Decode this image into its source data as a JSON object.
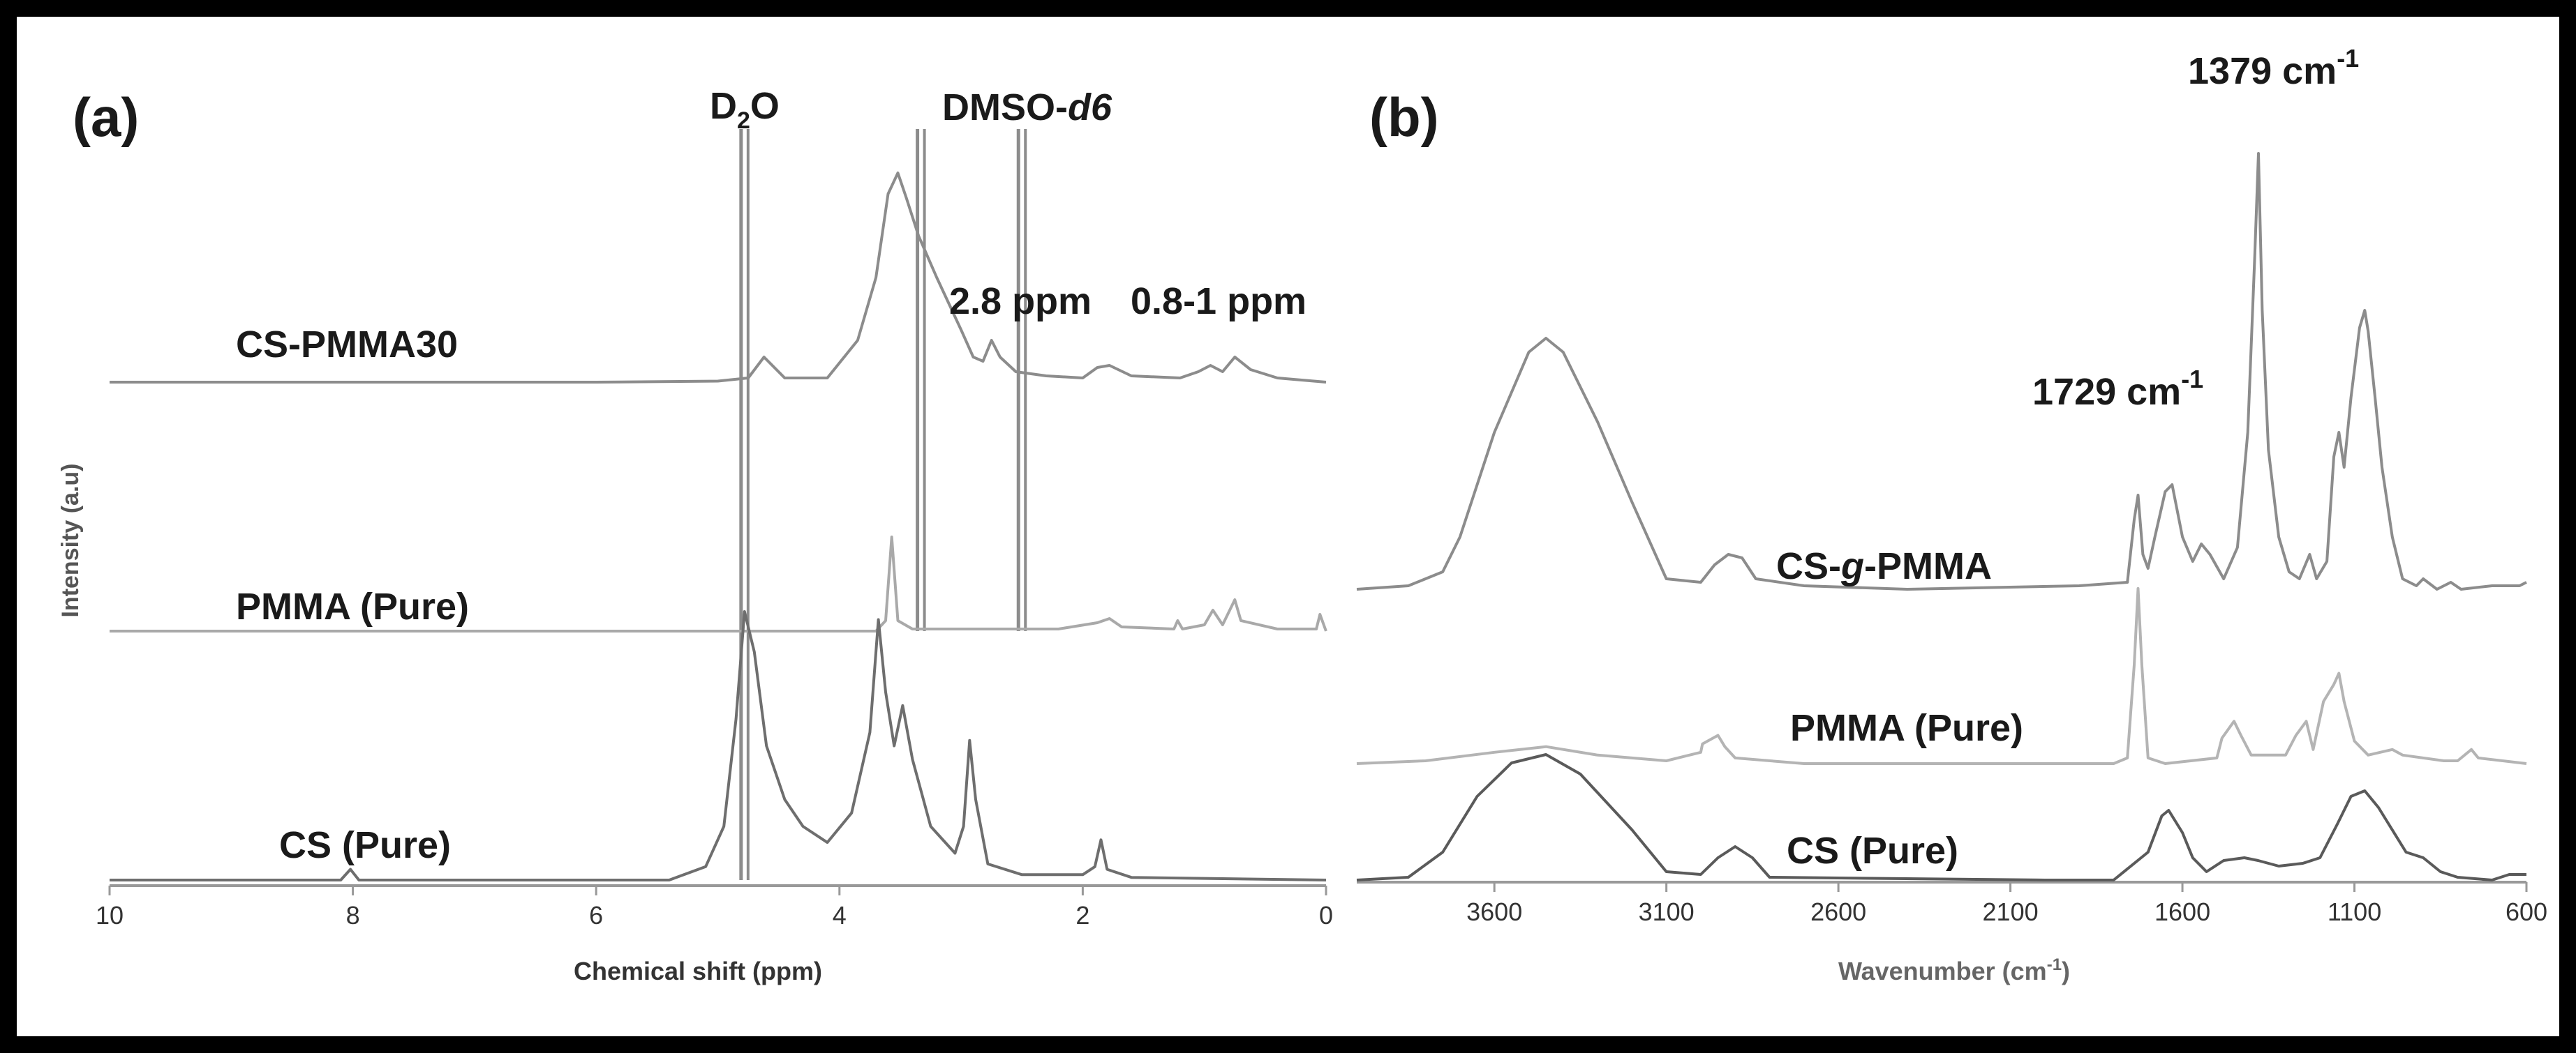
{
  "chart_data": [
    {
      "type": "line",
      "panel_label": "(a)",
      "xlabel": "Chemical shift (ppm)",
      "ylabel": "Intensity (a.u)",
      "xlim": [
        10,
        0
      ],
      "x_ticks": [
        "10",
        "8",
        "6",
        "4",
        "2",
        "0"
      ],
      "x_tick_values": [
        10,
        8,
        6,
        4,
        2,
        0
      ],
      "series": [
        {
          "name": "CS-PMMA30",
          "color": "#8c8c8c",
          "baseline": 0,
          "points": [
            [
              10,
              0
            ],
            [
              6,
              0
            ],
            [
              5,
              0.005
            ],
            [
              4.75,
              0.02
            ],
            [
              4.62,
              0.12
            ],
            [
              4.45,
              0.02
            ],
            [
              4.1,
              0.02
            ],
            [
              3.85,
              0.2
            ],
            [
              3.7,
              0.5
            ],
            [
              3.6,
              0.9
            ],
            [
              3.52,
              1.0
            ],
            [
              3.45,
              0.88
            ],
            [
              3.35,
              0.7
            ],
            [
              3.2,
              0.5
            ],
            [
              3.0,
              0.25
            ],
            [
              2.9,
              0.12
            ],
            [
              2.82,
              0.1
            ],
            [
              2.75,
              0.2
            ],
            [
              2.68,
              0.12
            ],
            [
              2.55,
              0.05
            ],
            [
              2.3,
              0.03
            ],
            [
              2.0,
              0.02
            ],
            [
              1.88,
              0.07
            ],
            [
              1.78,
              0.08
            ],
            [
              1.6,
              0.03
            ],
            [
              1.2,
              0.02
            ],
            [
              1.05,
              0.05
            ],
            [
              0.95,
              0.08
            ],
            [
              0.85,
              0.05
            ],
            [
              0.75,
              0.12
            ],
            [
              0.62,
              0.06
            ],
            [
              0.4,
              0.02
            ],
            [
              0,
              0
            ]
          ]
        },
        {
          "name": "PMMA (Pure)",
          "color": "#a9a9a9",
          "baseline": 0,
          "points": [
            [
              10,
              0
            ],
            [
              3.7,
              0
            ],
            [
              3.62,
              0.05
            ],
            [
              3.57,
              0.45
            ],
            [
              3.52,
              0.05
            ],
            [
              3.4,
              0.01
            ],
            [
              2.2,
              0.01
            ],
            [
              1.88,
              0.04
            ],
            [
              1.78,
              0.06
            ],
            [
              1.68,
              0.02
            ],
            [
              1.25,
              0.01
            ],
            [
              1.22,
              0.05
            ],
            [
              1.18,
              0.01
            ],
            [
              1.0,
              0.03
            ],
            [
              0.93,
              0.1
            ],
            [
              0.85,
              0.03
            ],
            [
              0.75,
              0.15
            ],
            [
              0.7,
              0.05
            ],
            [
              0.4,
              0.01
            ],
            [
              0.08,
              0.01
            ],
            [
              0.05,
              0.08
            ],
            [
              0,
              0
            ]
          ]
        },
        {
          "name": "CS (Pure)",
          "color": "#6e6e6e",
          "baseline": 0,
          "points": [
            [
              10,
              0
            ],
            [
              8.1,
              0
            ],
            [
              8.02,
              0.04
            ],
            [
              7.95,
              0
            ],
            [
              5.4,
              0
            ],
            [
              5.1,
              0.05
            ],
            [
              4.95,
              0.2
            ],
            [
              4.85,
              0.6
            ],
            [
              4.78,
              1.0
            ],
            [
              4.7,
              0.85
            ],
            [
              4.6,
              0.5
            ],
            [
              4.45,
              0.3
            ],
            [
              4.3,
              0.2
            ],
            [
              4.1,
              0.14
            ],
            [
              3.9,
              0.25
            ],
            [
              3.75,
              0.55
            ],
            [
              3.68,
              0.97
            ],
            [
              3.62,
              0.7
            ],
            [
              3.55,
              0.5
            ],
            [
              3.48,
              0.65
            ],
            [
              3.4,
              0.45
            ],
            [
              3.25,
              0.2
            ],
            [
              3.05,
              0.1
            ],
            [
              2.98,
              0.2
            ],
            [
              2.93,
              0.52
            ],
            [
              2.88,
              0.3
            ],
            [
              2.78,
              0.06
            ],
            [
              2.5,
              0.02
            ],
            [
              2.0,
              0.02
            ],
            [
              1.9,
              0.05
            ],
            [
              1.85,
              0.15
            ],
            [
              1.8,
              0.04
            ],
            [
              1.6,
              0.01
            ],
            [
              0,
              0
            ]
          ]
        }
      ],
      "reference_lines": [
        {
          "label": "D2O",
          "ppm": 4.78
        },
        {
          "label": "DMSO-d6",
          "ppm": 3.33
        },
        {
          "label": "DMSO-d6",
          "ppm": 2.5
        }
      ],
      "annotations": {
        "d2o_main": "D",
        "d2o_sub": "2",
        "d2o_end": "O",
        "dmso_main": "DMSO-",
        "dmso_italic": "d6",
        "peak_28": "2.8 ppm",
        "peak_081": "0.8-1 ppm"
      }
    },
    {
      "type": "line",
      "panel_label": "(b)",
      "xlabel_main": "Wavenumber (cm",
      "xlabel_sup": "-1",
      "xlabel_end": ")",
      "ylabel": "",
      "xlim": [
        4000,
        600
      ],
      "x_ticks": [
        "3600",
        "3100",
        "2600",
        "2100",
        "1600",
        "1100",
        "600"
      ],
      "x_tick_values": [
        3600,
        3100,
        2600,
        2100,
        1600,
        1100,
        600
      ],
      "series": [
        {
          "name": "CS-g-PMMA",
          "color": "#8c8c8c",
          "points": [
            [
              4000,
              0
            ],
            [
              3850,
              0.01
            ],
            [
              3750,
              0.05
            ],
            [
              3700,
              0.15
            ],
            [
              3600,
              0.45
            ],
            [
              3500,
              0.68
            ],
            [
              3450,
              0.72
            ],
            [
              3400,
              0.68
            ],
            [
              3300,
              0.48
            ],
            [
              3200,
              0.25
            ],
            [
              3100,
              0.03
            ],
            [
              3000,
              0.02
            ],
            [
              2960,
              0.07
            ],
            [
              2920,
              0.1
            ],
            [
              2880,
              0.09
            ],
            [
              2840,
              0.03
            ],
            [
              2700,
              0.01
            ],
            [
              2400,
              0
            ],
            [
              1900,
              0.01
            ],
            [
              1760,
              0.02
            ],
            [
              1740,
              0.2
            ],
            [
              1729,
              0.27
            ],
            [
              1715,
              0.1
            ],
            [
              1700,
              0.06
            ],
            [
              1680,
              0.15
            ],
            [
              1650,
              0.28
            ],
            [
              1630,
              0.3
            ],
            [
              1600,
              0.15
            ],
            [
              1570,
              0.08
            ],
            [
              1545,
              0.13
            ],
            [
              1520,
              0.1
            ],
            [
              1480,
              0.03
            ],
            [
              1440,
              0.12
            ],
            [
              1410,
              0.45
            ],
            [
              1390,
              0.95
            ],
            [
              1379,
              1.25
            ],
            [
              1368,
              0.8
            ],
            [
              1350,
              0.4
            ],
            [
              1320,
              0.15
            ],
            [
              1290,
              0.05
            ],
            [
              1260,
              0.03
            ],
            [
              1230,
              0.1
            ],
            [
              1210,
              0.03
            ],
            [
              1180,
              0.08
            ],
            [
              1160,
              0.38
            ],
            [
              1145,
              0.45
            ],
            [
              1130,
              0.35
            ],
            [
              1110,
              0.55
            ],
            [
              1085,
              0.75
            ],
            [
              1070,
              0.8
            ],
            [
              1060,
              0.74
            ],
            [
              1040,
              0.55
            ],
            [
              1020,
              0.35
            ],
            [
              990,
              0.15
            ],
            [
              960,
              0.03
            ],
            [
              920,
              0.01
            ],
            [
              900,
              0.03
            ],
            [
              860,
              0
            ],
            [
              820,
              0.02
            ],
            [
              790,
              0
            ],
            [
              700,
              0.01
            ],
            [
              620,
              0.01
            ],
            [
              600,
              0.02
            ]
          ]
        },
        {
          "name": "PMMA (Pure)",
          "color": "#b4b4b4",
          "points": [
            [
              4000,
              0
            ],
            [
              3800,
              0.01
            ],
            [
              3600,
              0.04
            ],
            [
              3450,
              0.06
            ],
            [
              3300,
              0.03
            ],
            [
              3100,
              0.01
            ],
            [
              3000,
              0.04
            ],
            [
              2995,
              0.07
            ],
            [
              2950,
              0.1
            ],
            [
              2930,
              0.06
            ],
            [
              2900,
              0.02
            ],
            [
              2700,
              0
            ],
            [
              1800,
              0
            ],
            [
              1760,
              0.02
            ],
            [
              1740,
              0.35
            ],
            [
              1729,
              0.62
            ],
            [
              1718,
              0.35
            ],
            [
              1700,
              0.02
            ],
            [
              1650,
              0
            ],
            [
              1500,
              0.02
            ],
            [
              1485,
              0.09
            ],
            [
              1450,
              0.15
            ],
            [
              1430,
              0.1
            ],
            [
              1400,
              0.03
            ],
            [
              1300,
              0.03
            ],
            [
              1270,
              0.1
            ],
            [
              1240,
              0.15
            ],
            [
              1220,
              0.05
            ],
            [
              1190,
              0.22
            ],
            [
              1160,
              0.28
            ],
            [
              1145,
              0.32
            ],
            [
              1130,
              0.22
            ],
            [
              1100,
              0.08
            ],
            [
              1060,
              0.03
            ],
            [
              990,
              0.05
            ],
            [
              960,
              0.03
            ],
            [
              840,
              0.01
            ],
            [
              800,
              0.01
            ],
            [
              760,
              0.05
            ],
            [
              740,
              0.02
            ],
            [
              600,
              0
            ]
          ]
        },
        {
          "name": "CS (Pure)",
          "color": "#5a5a5a",
          "points": [
            [
              4000,
              0
            ],
            [
              3850,
              0.01
            ],
            [
              3750,
              0.1
            ],
            [
              3650,
              0.3
            ],
            [
              3550,
              0.42
            ],
            [
              3450,
              0.45
            ],
            [
              3350,
              0.38
            ],
            [
              3200,
              0.18
            ],
            [
              3100,
              0.03
            ],
            [
              3000,
              0.02
            ],
            [
              2950,
              0.08
            ],
            [
              2900,
              0.12
            ],
            [
              2850,
              0.08
            ],
            [
              2800,
              0.01
            ],
            [
              2000,
              0
            ],
            [
              1800,
              0
            ],
            [
              1700,
              0.1
            ],
            [
              1660,
              0.23
            ],
            [
              1640,
              0.25
            ],
            [
              1600,
              0.17
            ],
            [
              1570,
              0.08
            ],
            [
              1530,
              0.03
            ],
            [
              1480,
              0.07
            ],
            [
              1420,
              0.08
            ],
            [
              1380,
              0.07
            ],
            [
              1320,
              0.05
            ],
            [
              1250,
              0.06
            ],
            [
              1200,
              0.08
            ],
            [
              1150,
              0.2
            ],
            [
              1110,
              0.3
            ],
            [
              1070,
              0.32
            ],
            [
              1030,
              0.26
            ],
            [
              1000,
              0.2
            ],
            [
              950,
              0.1
            ],
            [
              900,
              0.08
            ],
            [
              850,
              0.03
            ],
            [
              800,
              0.01
            ],
            [
              700,
              0
            ],
            [
              650,
              0.02
            ],
            [
              600,
              0.02
            ]
          ]
        }
      ],
      "annotations": {
        "peak_1379_main": "1379 cm",
        "peak_1379_sup": "-1",
        "peak_1729_main": "1729 cm",
        "peak_1729_sup": "-1",
        "cs_g_pmma_pre": "CS-",
        "cs_g_pmma_italic": "g",
        "cs_g_pmma_post": "-PMMA",
        "pmma_pure": "PMMA (Pure)",
        "cs_pure": "CS (Pure)"
      }
    }
  ]
}
